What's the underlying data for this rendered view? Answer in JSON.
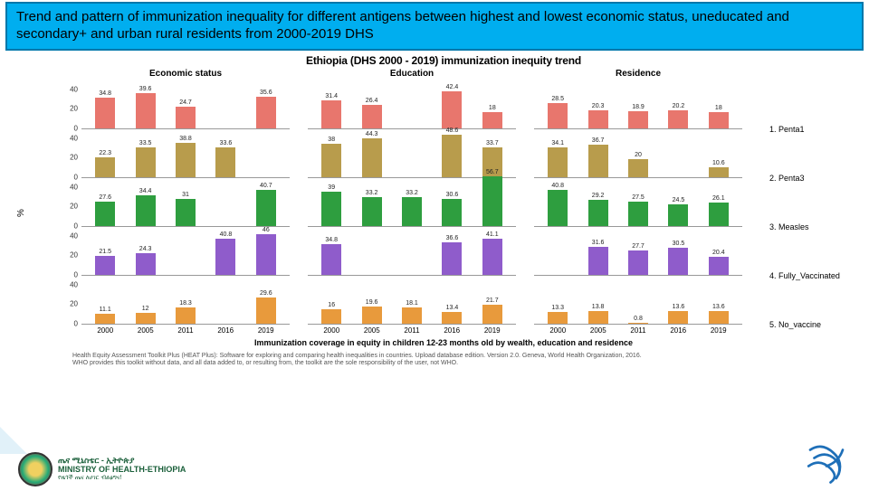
{
  "banner": {
    "line": "Trend and pattern of immunization inequality for different antigens between highest and lowest economic status, uneducated and secondary+ and urban rural residents from 2000-2019 DHS"
  },
  "chart": {
    "title": "Ethiopia  (DHS 2000 - 2019) immunization inequity trend",
    "columns": [
      "Economic status",
      "Education",
      "Residence"
    ],
    "rows": [
      "1. Penta1",
      "2. Penta3",
      "3. Measles",
      "4. Fully_Vaccinated",
      "5. No_vaccine"
    ],
    "x_years": [
      "2000",
      "2005",
      "2011",
      "2016",
      "2019"
    ],
    "x_axis_title": "Immunization coverage in equity in children 12-23 months old by wealth, education and residence",
    "y_label": "%",
    "ylim": [
      0,
      50
    ],
    "yticks": [
      0,
      20,
      40
    ],
    "row_colors": [
      "#e8766d",
      "#b89c4c",
      "#2e9e3f",
      "#8f5ccb",
      "#e89a3c"
    ],
    "bar_width": 0.7,
    "background_color": "#ffffff",
    "grid_color": "#e0e0e0",
    "label_fontsize": 8,
    "title_fontsize": 12,
    "data": {
      "Economic status": {
        "1. Penta1": [
          34.8,
          39.6,
          24.7,
          null,
          35.6
        ],
        "2. Penta3": [
          22.3,
          33.5,
          38.8,
          33.6,
          null
        ],
        "3. Measles": [
          27.6,
          34.4,
          31,
          null,
          40.7
        ],
        "4. Fully_Vaccinated": [
          21.5,
          24.3,
          null,
          40.8,
          46.0
        ],
        "5. No_vaccine": [
          11.1,
          12.0,
          18.3,
          null,
          29.6
        ]
      },
      "Education": {
        "1. Penta1": [
          31.4,
          26.4,
          null,
          42.4,
          18.0
        ],
        "2. Penta3": [
          38.0,
          44.3,
          null,
          48.6,
          33.7
        ],
        "3. Measles": [
          39.0,
          33.2,
          33.2,
          30.6,
          56.7
        ],
        "4. Fully_Vaccinated": [
          34.8,
          null,
          null,
          36.6,
          41.1
        ],
        "5. No_vaccine": [
          16.0,
          19.6,
          18.1,
          13.4,
          21.7
        ]
      },
      "Residence": {
        "1. Penta1": [
          28.5,
          20.3,
          18.9,
          20.2,
          18.0
        ],
        "2. Penta3": [
          34.1,
          36.7,
          20.0,
          null,
          10.6
        ],
        "3. Measles": [
          40.8,
          29.2,
          27.5,
          24.5,
          26.1
        ],
        "4. Fully_Vaccinated": [
          null,
          31.6,
          27.7,
          30.5,
          20.4
        ],
        "5. No_vaccine": [
          13.3,
          13.8,
          0.8,
          13.6,
          13.6
        ]
      }
    }
  },
  "footnote": "Health Equity Assessment Toolkit Plus (HEAT Plus): Software for exploring and comparing health inequalities in countries. Upload database edition. Version 2.0. Geneva, World Health Organization, 2016.\nWHO provides this toolkit without data, and all data added to, or resulting from, the toolkit are the sole responsibility of the user, not WHO.",
  "moh": {
    "am": "ጤና ሚኒስቴር - ኢትዮጵያ",
    "en": "MINISTRY OF HEALTH-ETHIOPIA",
    "sub": "የዜጎች ጤና ለሀገር ብልፅግና!",
    "sub_en": "HEALTHIER CITIZENS FOR PROSPEROUS NATION!"
  },
  "right_logo_color": "#1e6fb8"
}
